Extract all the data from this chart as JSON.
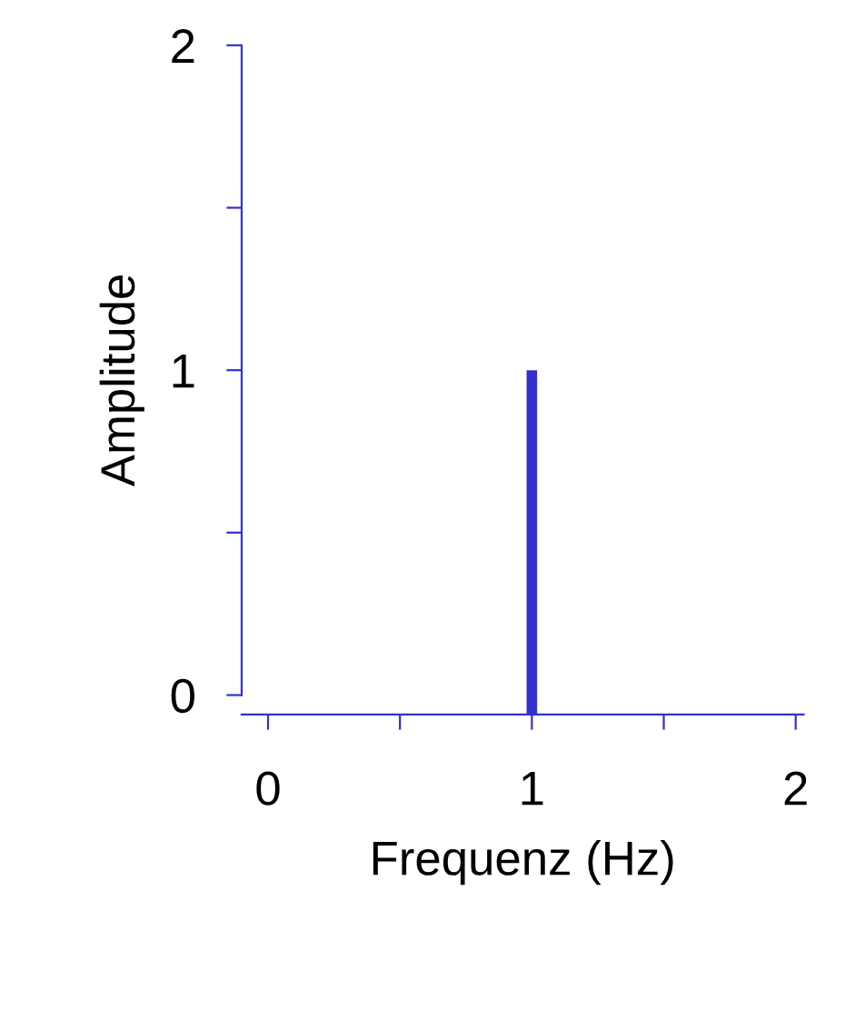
{
  "chart_data": {
    "type": "bar",
    "xlabel": "Frequenz (Hz)",
    "ylabel": "Amplitude",
    "x": [
      1
    ],
    "values": [
      1.06
    ],
    "base": [
      -0.06
    ],
    "color": "#3333cc",
    "xlim": [
      -0.1,
      2.03
    ],
    "ylim": [
      -0.06,
      2
    ],
    "xticks": [
      0,
      {
        "value": 0.5,
        "label": null
      },
      1,
      {
        "value": 1.5,
        "label": null
      },
      2
    ],
    "yticks": [
      0,
      {
        "value": 0.5,
        "label": null
      },
      1,
      {
        "value": 1.5,
        "label": null
      },
      2
    ],
    "grid": false,
    "legend": false
  }
}
